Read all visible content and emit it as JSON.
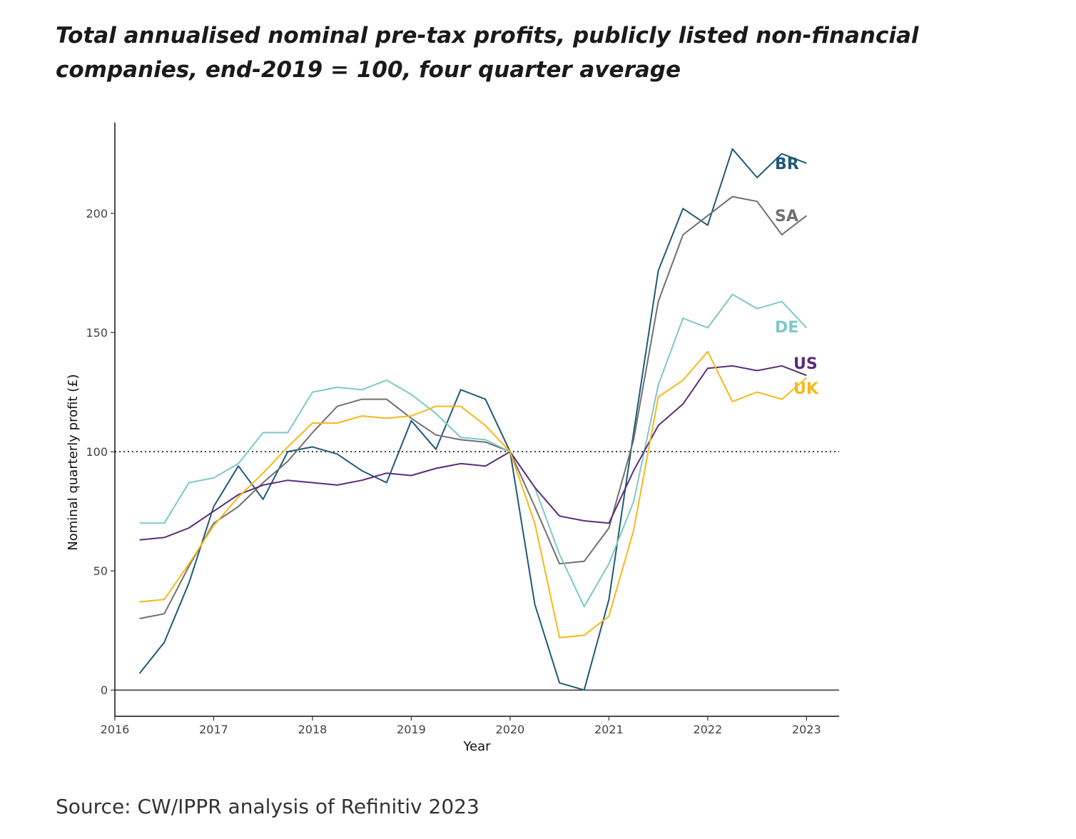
{
  "title": "Total annualised nominal pre-tax profits, publicly listed non-financial companies, end-2019 = 100, four quarter average",
  "source": "Source: CW/IPPR analysis of Refinitiv 2023",
  "chart_data": {
    "type": "line",
    "title": "Total annualised nominal pre-tax profits, publicly listed non-financial companies, end-2019 = 100, four quarter average",
    "xlabel": "Year",
    "ylabel": "Nominal quarterly profit (£)",
    "xlim": [
      2016,
      2023.33
    ],
    "ylim": [
      -11,
      238
    ],
    "x_ticks": [
      2016,
      2017,
      2018,
      2019,
      2020,
      2021,
      2022,
      2023
    ],
    "y_ticks": [
      0,
      50,
      100,
      150,
      200
    ],
    "reference_line": {
      "y": 100,
      "style": "dotted"
    },
    "zero_line": {
      "y": 0
    },
    "legend": "direct labels at line ends",
    "x": [
      2016.25,
      2016.5,
      2016.75,
      2017.0,
      2017.25,
      2017.5,
      2017.75,
      2018.0,
      2018.25,
      2018.5,
      2018.75,
      2019.0,
      2019.25,
      2019.5,
      2019.75,
      2020.0,
      2020.25,
      2020.5,
      2020.75,
      2021.0,
      2021.25,
      2021.5,
      2021.75,
      2022.0,
      2022.25,
      2022.5,
      2022.75,
      2023.0
    ],
    "series": [
      {
        "name": "BR",
        "color": "#1f5a78",
        "values": [
          7,
          20,
          45,
          77,
          94,
          80,
          100,
          102,
          99,
          92,
          87,
          113,
          101,
          126,
          122,
          100,
          36,
          3,
          0,
          38,
          108,
          176,
          202,
          195,
          227,
          215,
          225,
          221
        ]
      },
      {
        "name": "SA",
        "color": "#707070",
        "values": [
          30,
          32,
          52,
          70,
          77,
          87,
          96,
          108,
          119,
          122,
          122,
          114,
          107,
          105,
          104,
          100,
          77,
          53,
          54,
          68,
          105,
          163,
          191,
          199,
          207,
          205,
          191,
          199
        ]
      },
      {
        "name": "DE",
        "color": "#7ec8ca",
        "values": [
          70,
          70,
          87,
          89,
          95,
          108,
          108,
          125,
          127,
          126,
          130,
          124,
          116,
          106,
          105,
          100,
          85,
          57,
          35,
          53,
          79,
          128,
          156,
          152,
          166,
          160,
          163,
          152
        ]
      },
      {
        "name": "US",
        "color": "#5b2d7a",
        "values": [
          63,
          64,
          68,
          75,
          82,
          86,
          88,
          87,
          86,
          88,
          91,
          90,
          93,
          95,
          94,
          100,
          85,
          73,
          71,
          70,
          92,
          111,
          120,
          135,
          136,
          134,
          136,
          132
        ]
      },
      {
        "name": "UK",
        "color": "#f6b81b",
        "values": [
          37,
          38,
          53,
          69,
          81,
          91,
          102,
          112,
          112,
          115,
          114,
          115,
          119,
          119,
          111,
          100,
          70,
          22,
          23,
          31,
          67,
          123,
          130,
          142,
          121,
          125,
          122,
          131
        ]
      }
    ]
  }
}
